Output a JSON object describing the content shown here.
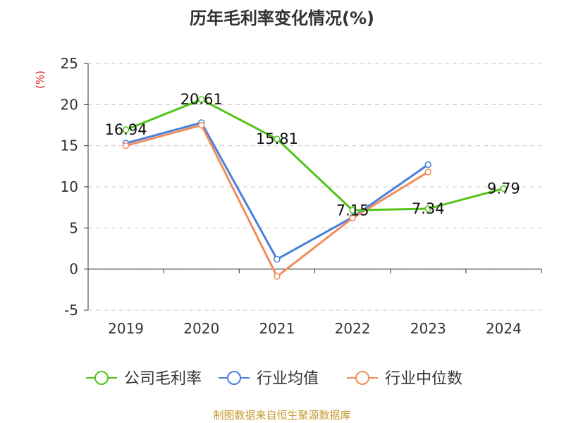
{
  "title": "历年毛利率变化情况(%)",
  "y_unit": "(%)",
  "source": "制图数据来自恒生聚源数据库",
  "chart_data": {
    "type": "line",
    "title": "历年毛利率变化情况(%)",
    "ylabel": "(%)",
    "xlabel": "",
    "categories": [
      "2019",
      "2020",
      "2021",
      "2022",
      "2023",
      "2024"
    ],
    "ylim": [
      -5,
      25
    ],
    "yticks": [
      -5,
      0,
      5,
      10,
      15,
      20,
      25
    ],
    "grid": true,
    "legend_position": "bottom",
    "series": [
      {
        "name": "公司毛利率",
        "color": "#52c41a",
        "values": [
          16.94,
          20.61,
          15.81,
          7.15,
          7.34,
          9.79
        ],
        "show_labels": true
      },
      {
        "name": "行业均值",
        "color": "#4a7fdb",
        "values": [
          15.3,
          17.8,
          1.2,
          6.3,
          12.7,
          null
        ],
        "show_labels": false
      },
      {
        "name": "行业中位数",
        "color": "#f28c5a",
        "values": [
          15.0,
          17.5,
          -0.9,
          6.2,
          11.8,
          null
        ],
        "show_labels": false
      }
    ]
  }
}
